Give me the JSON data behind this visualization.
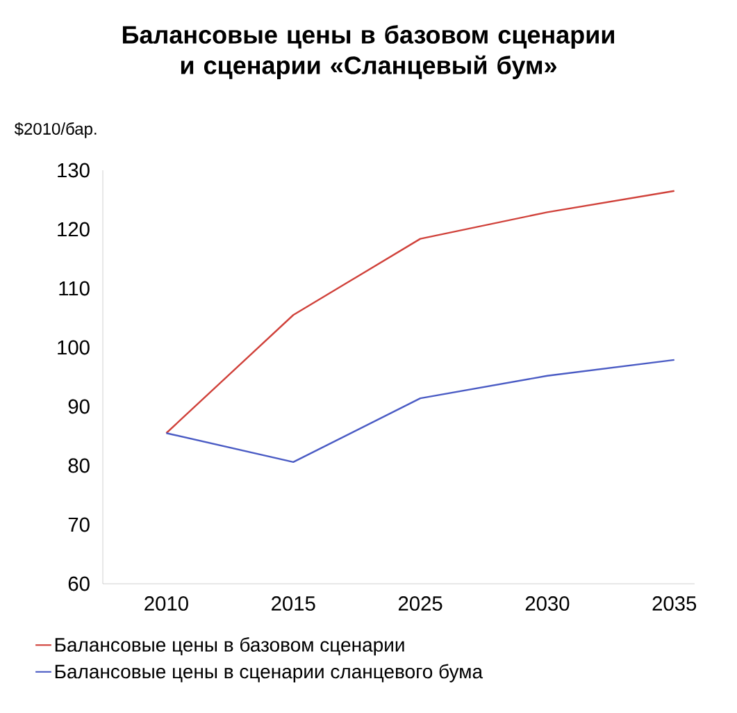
{
  "chart_data": {
    "type": "line",
    "title": "Балансовые цены в базовом сценарии и сценарии «Сланцевый бум»",
    "ylabel": "$2010/бар.",
    "categories": [
      "2010",
      "2015",
      "2025",
      "2030",
      "2035"
    ],
    "series": [
      {
        "name": "Балансовые цены в базовом сценарии",
        "color": "#d0413a",
        "values": [
          85.5,
          105.5,
          118.4,
          122.9,
          126.5
        ]
      },
      {
        "name": "Балансовые цены в сценарии сланцевого бума",
        "color": "#4a5bc4",
        "values": [
          85.5,
          80.6,
          91.4,
          95.2,
          97.9
        ]
      }
    ],
    "ylim": [
      60,
      130
    ],
    "yticks": [
      60,
      70,
      80,
      90,
      100,
      110,
      120,
      130
    ],
    "legend": "bottom",
    "marker": "none"
  }
}
